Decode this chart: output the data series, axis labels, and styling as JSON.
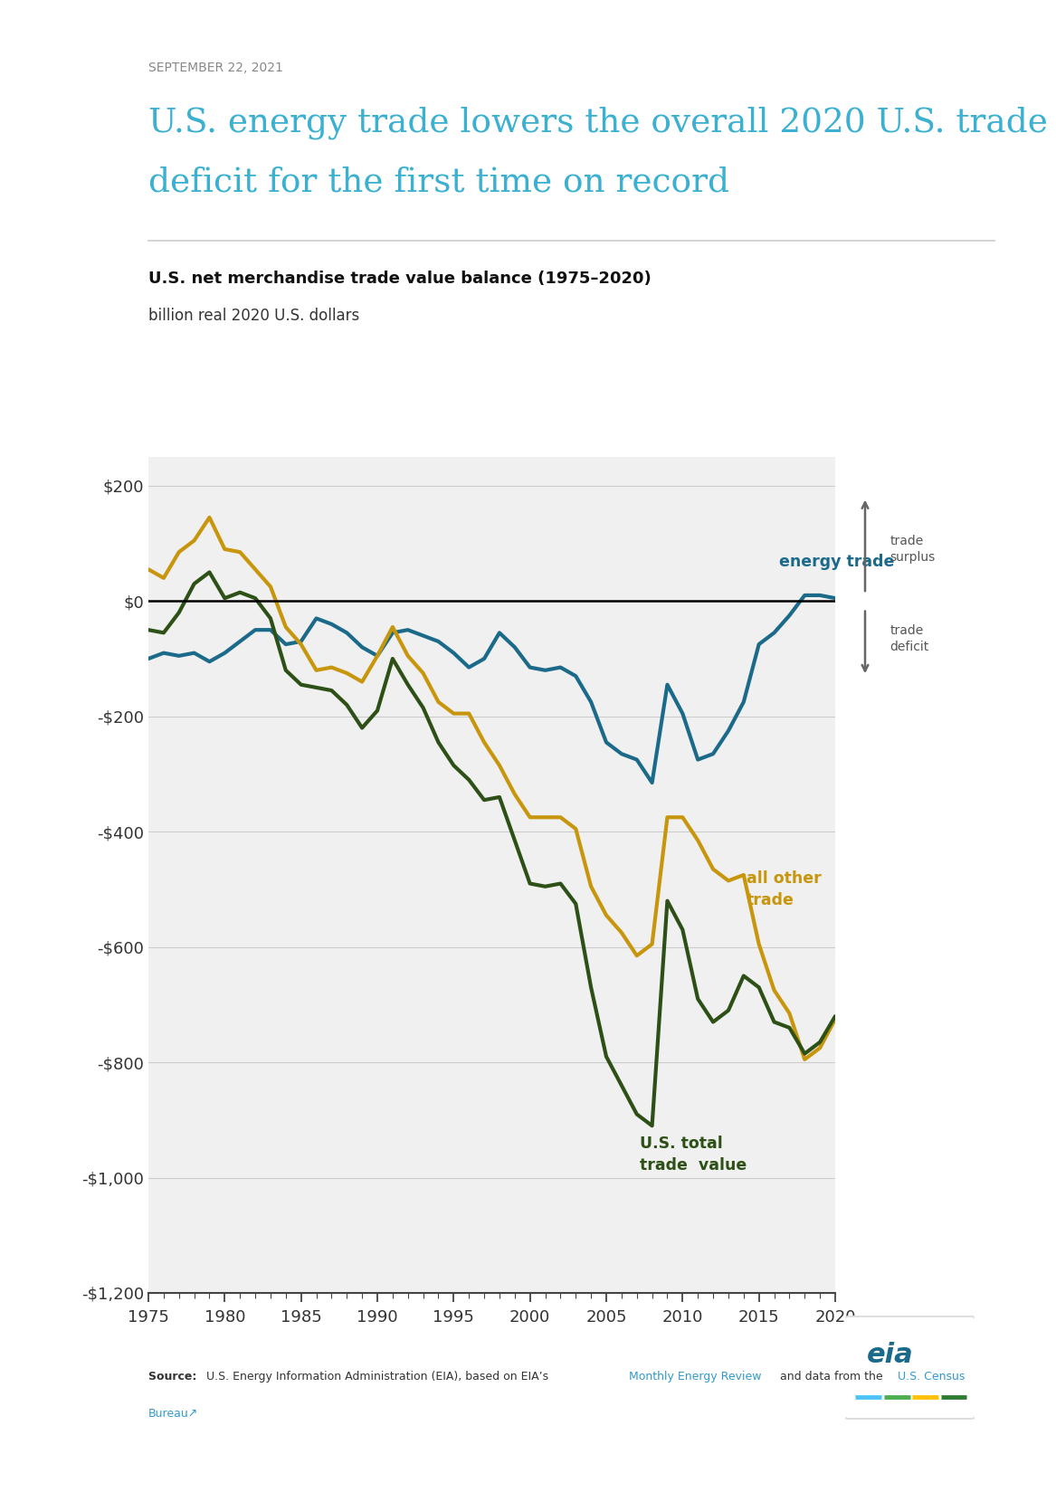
{
  "date_label": "SEPTEMBER 22, 2021",
  "title_line1": "U.S. energy trade lowers the overall 2020 U.S. trade",
  "title_line2": "deficit for the first time on record",
  "chart_title_bold": "U.S. net merchandise trade value balance (1975–2020)",
  "chart_subtitle": "billion real 2020 U.S. dollars",
  "years": [
    1975,
    1976,
    1977,
    1978,
    1979,
    1980,
    1981,
    1982,
    1983,
    1984,
    1985,
    1986,
    1987,
    1988,
    1989,
    1990,
    1991,
    1992,
    1993,
    1994,
    1995,
    1996,
    1997,
    1998,
    1999,
    2000,
    2001,
    2002,
    2003,
    2004,
    2005,
    2006,
    2007,
    2008,
    2009,
    2010,
    2011,
    2012,
    2013,
    2014,
    2015,
    2016,
    2017,
    2018,
    2019,
    2020
  ],
  "energy_trade": [
    -100,
    -90,
    -95,
    -90,
    -105,
    -90,
    -70,
    -50,
    -50,
    -75,
    -70,
    -30,
    -40,
    -55,
    -80,
    -95,
    -55,
    -50,
    -60,
    -70,
    -90,
    -115,
    -100,
    -55,
    -80,
    -115,
    -120,
    -115,
    -130,
    -175,
    -245,
    -265,
    -275,
    -315,
    -145,
    -195,
    -275,
    -265,
    -225,
    -175,
    -75,
    -55,
    -25,
    10,
    10,
    5
  ],
  "all_other_trade": [
    55,
    40,
    85,
    105,
    145,
    90,
    85,
    55,
    25,
    -45,
    -75,
    -120,
    -115,
    -125,
    -140,
    -95,
    -45,
    -95,
    -125,
    -175,
    -195,
    -195,
    -245,
    -285,
    -335,
    -375,
    -375,
    -375,
    -395,
    -495,
    -545,
    -575,
    -615,
    -595,
    -375,
    -375,
    -415,
    -465,
    -485,
    -475,
    -595,
    -675,
    -715,
    -795,
    -775,
    -725
  ],
  "total_trade": [
    -50,
    -55,
    -20,
    30,
    50,
    5,
    15,
    5,
    -30,
    -120,
    -145,
    -150,
    -155,
    -180,
    -220,
    -190,
    -100,
    -145,
    -185,
    -245,
    -285,
    -310,
    -345,
    -340,
    -415,
    -490,
    -495,
    -490,
    -525,
    -670,
    -790,
    -840,
    -890,
    -910,
    -520,
    -570,
    -690,
    -730,
    -710,
    -650,
    -670,
    -730,
    -740,
    -785,
    -765,
    -720
  ],
  "energy_color": "#1B6A8A",
  "all_other_color": "#C8960C",
  "total_color": "#2D5016",
  "ylim": [
    -1200,
    250
  ],
  "yticks": [
    200,
    0,
    -200,
    -400,
    -600,
    -800,
    -1000,
    -1200
  ],
  "ytick_labels": [
    "$200",
    "$0",
    "-$200",
    "-$400",
    "-$600",
    "-$800",
    "-$1,000",
    "-$1,200"
  ],
  "bg_color": "#FFFFFF",
  "plot_bg": "#F0F0F0",
  "grid_color": "#CCCCCC",
  "date_color": "#888888",
  "title_color": "#3BB0D0",
  "axis_label_color": "#333333"
}
